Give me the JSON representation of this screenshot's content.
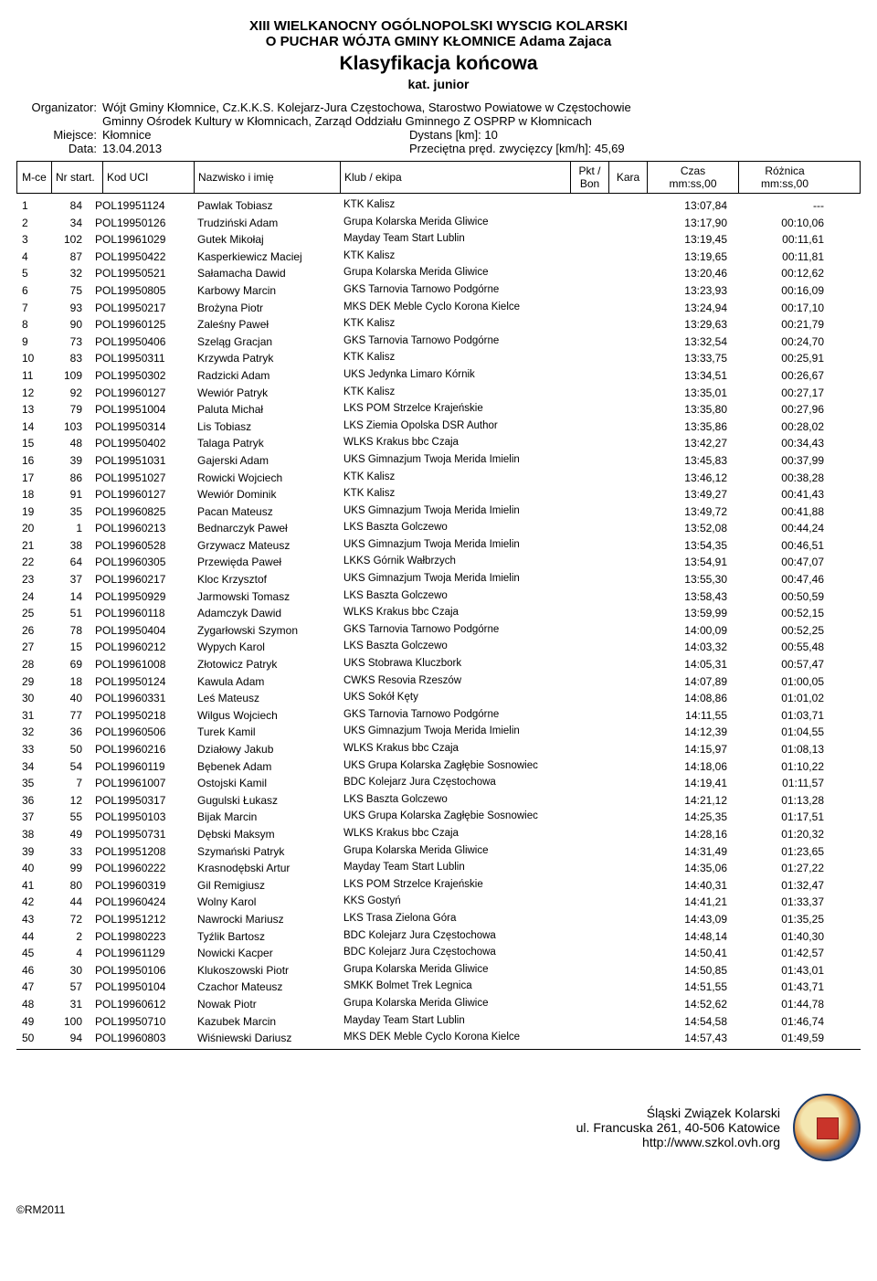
{
  "header": {
    "line1": "XIII WIELKANOCNY OGÓLNOPOLSKI WYSCIG KOLARSKI",
    "line2": "O PUCHAR WÓJTA GMINY KŁOMNICE Adama Zajaca",
    "line3": "Klasyfikacja końcowa",
    "line4": "kat. junior"
  },
  "meta": {
    "organizer_label": "Organizator:",
    "organizer_value1": "Wójt Gminy Kłomnice, Cz.K.K.S. Kolejarz-Jura Częstochowa, Starostwo Powiatowe w Częstochowie",
    "organizer_value2": "Gminny Ośrodek Kultury w Kłomnicach, Zarząd Oddziału Gminnego Z OSPRP w Kłomnicach",
    "place_label": "Miejsce:",
    "place_value": "Kłomnice",
    "distance_label": "Dystans [km]:",
    "distance_value": "10",
    "date_label": "Data:",
    "date_value": "13.04.2013",
    "avgspeed_label": "Przeciętna pręd. zwycięzcy [km/h]:",
    "avgspeed_value": "45,69"
  },
  "columns": {
    "mce": "M-ce",
    "nr": "Nr start.",
    "uci": "Kod UCI",
    "name": "Nazwisko i imię",
    "club": "Klub / ekipa",
    "pkt1": "Pkt /",
    "pkt2": "Bon",
    "kara": "Kara",
    "czas1": "Czas",
    "czas2": "mm:ss,00",
    "diff1": "Różnica",
    "diff2": "mm:ss,00"
  },
  "rows": [
    {
      "p": "1",
      "nr": "84",
      "uci": "POL19951124",
      "name": "Pawlak Tobiasz",
      "club": "KTK Kalisz",
      "cz": "13:07,84",
      "df": "---"
    },
    {
      "p": "2",
      "nr": "34",
      "uci": "POL19950126",
      "name": "Trudziński Adam",
      "club": "Grupa Kolarska Merida Gliwice",
      "cz": "13:17,90",
      "df": "00:10,06"
    },
    {
      "p": "3",
      "nr": "102",
      "uci": "POL19961029",
      "name": "Gutek Mikołaj",
      "club": "Mayday Team Start Lublin",
      "cz": "13:19,45",
      "df": "00:11,61"
    },
    {
      "p": "4",
      "nr": "87",
      "uci": "POL19950422",
      "name": "Kasperkiewicz Maciej",
      "club": "KTK Kalisz",
      "cz": "13:19,65",
      "df": "00:11,81"
    },
    {
      "p": "5",
      "nr": "32",
      "uci": "POL19950521",
      "name": "Sałamacha Dawid",
      "club": "Grupa Kolarska Merida Gliwice",
      "cz": "13:20,46",
      "df": "00:12,62"
    },
    {
      "p": "6",
      "nr": "75",
      "uci": "POL19950805",
      "name": "Karbowy Marcin",
      "club": "GKS Tarnovia Tarnowo Podgórne",
      "cz": "13:23,93",
      "df": "00:16,09"
    },
    {
      "p": "7",
      "nr": "93",
      "uci": "POL19950217",
      "name": "Brożyna Piotr",
      "club": "MKS DEK Meble Cyclo Korona Kielce",
      "cz": "13:24,94",
      "df": "00:17,10"
    },
    {
      "p": "8",
      "nr": "90",
      "uci": "POL19960125",
      "name": "Zaleśny Paweł",
      "club": "KTK Kalisz",
      "cz": "13:29,63",
      "df": "00:21,79"
    },
    {
      "p": "9",
      "nr": "73",
      "uci": "POL19950406",
      "name": "Szeląg Gracjan",
      "club": "GKS Tarnovia Tarnowo Podgórne",
      "cz": "13:32,54",
      "df": "00:24,70"
    },
    {
      "p": "10",
      "nr": "83",
      "uci": "POL19950311",
      "name": "Krzywda Patryk",
      "club": "KTK Kalisz",
      "cz": "13:33,75",
      "df": "00:25,91"
    },
    {
      "p": "11",
      "nr": "109",
      "uci": "POL19950302",
      "name": "Radzicki Adam",
      "club": "UKS Jedynka Limaro Kórnik",
      "cz": "13:34,51",
      "df": "00:26,67"
    },
    {
      "p": "12",
      "nr": "92",
      "uci": "POL19960127",
      "name": "Wewiór Patryk",
      "club": "KTK Kalisz",
      "cz": "13:35,01",
      "df": "00:27,17"
    },
    {
      "p": "13",
      "nr": "79",
      "uci": "POL19951004",
      "name": "Paluta Michał",
      "club": "LKS POM Strzelce Krajeńskie",
      "cz": "13:35,80",
      "df": "00:27,96"
    },
    {
      "p": "14",
      "nr": "103",
      "uci": "POL19950314",
      "name": "Lis Tobiasz",
      "club": "LKS Ziemia Opolska DSR Author",
      "cz": "13:35,86",
      "df": "00:28,02"
    },
    {
      "p": "15",
      "nr": "48",
      "uci": "POL19950402",
      "name": "Talaga Patryk",
      "club": "WLKS Krakus bbc Czaja",
      "cz": "13:42,27",
      "df": "00:34,43"
    },
    {
      "p": "16",
      "nr": "39",
      "uci": "POL19951031",
      "name": "Gajerski Adam",
      "club": "UKS Gimnazjum Twoja Merida Imielin",
      "cz": "13:45,83",
      "df": "00:37,99"
    },
    {
      "p": "17",
      "nr": "86",
      "uci": "POL19951027",
      "name": "Rowicki Wojciech",
      "club": "KTK Kalisz",
      "cz": "13:46,12",
      "df": "00:38,28"
    },
    {
      "p": "18",
      "nr": "91",
      "uci": "POL19960127",
      "name": "Wewiór Dominik",
      "club": "KTK Kalisz",
      "cz": "13:49,27",
      "df": "00:41,43"
    },
    {
      "p": "19",
      "nr": "35",
      "uci": "POL19960825",
      "name": "Pacan Mateusz",
      "club": "UKS Gimnazjum Twoja Merida Imielin",
      "cz": "13:49,72",
      "df": "00:41,88"
    },
    {
      "p": "20",
      "nr": "1",
      "uci": "POL19960213",
      "name": "Bednarczyk Paweł",
      "club": "LKS Baszta Golczewo",
      "cz": "13:52,08",
      "df": "00:44,24"
    },
    {
      "p": "21",
      "nr": "38",
      "uci": "POL19960528",
      "name": "Grzywacz Mateusz",
      "club": "UKS Gimnazjum Twoja Merida Imielin",
      "cz": "13:54,35",
      "df": "00:46,51"
    },
    {
      "p": "22",
      "nr": "64",
      "uci": "POL19960305",
      "name": "Przewięda Paweł",
      "club": "LKKS Górnik Wałbrzych",
      "cz": "13:54,91",
      "df": "00:47,07"
    },
    {
      "p": "23",
      "nr": "37",
      "uci": "POL19960217",
      "name": "Kloc Krzysztof",
      "club": "UKS Gimnazjum Twoja Merida Imielin",
      "cz": "13:55,30",
      "df": "00:47,46"
    },
    {
      "p": "24",
      "nr": "14",
      "uci": "POL19950929",
      "name": "Jarmowski Tomasz",
      "club": "LKS Baszta Golczewo",
      "cz": "13:58,43",
      "df": "00:50,59"
    },
    {
      "p": "25",
      "nr": "51",
      "uci": "POL19960118",
      "name": "Adamczyk Dawid",
      "club": "WLKS Krakus bbc Czaja",
      "cz": "13:59,99",
      "df": "00:52,15"
    },
    {
      "p": "26",
      "nr": "78",
      "uci": "POL19950404",
      "name": "Zygarłowski Szymon",
      "club": "GKS Tarnovia Tarnowo Podgórne",
      "cz": "14:00,09",
      "df": "00:52,25"
    },
    {
      "p": "27",
      "nr": "15",
      "uci": "POL19960212",
      "name": "Wypych Karol",
      "club": "LKS Baszta Golczewo",
      "cz": "14:03,32",
      "df": "00:55,48"
    },
    {
      "p": "28",
      "nr": "69",
      "uci": "POL19961008",
      "name": "Złotowicz Patryk",
      "club": "UKS Stobrawa Kluczbork",
      "cz": "14:05,31",
      "df": "00:57,47"
    },
    {
      "p": "29",
      "nr": "18",
      "uci": "POL19950124",
      "name": "Kawula Adam",
      "club": "CWKS Resovia Rzeszów",
      "cz": "14:07,89",
      "df": "01:00,05"
    },
    {
      "p": "30",
      "nr": "40",
      "uci": "POL19960331",
      "name": "Leś Mateusz",
      "club": "UKS Sokół Kęty",
      "cz": "14:08,86",
      "df": "01:01,02"
    },
    {
      "p": "31",
      "nr": "77",
      "uci": "POL19950218",
      "name": "Wilgus Wojciech",
      "club": "GKS Tarnovia Tarnowo Podgórne",
      "cz": "14:11,55",
      "df": "01:03,71"
    },
    {
      "p": "32",
      "nr": "36",
      "uci": "POL19960506",
      "name": "Turek Kamil",
      "club": "UKS Gimnazjum Twoja Merida Imielin",
      "cz": "14:12,39",
      "df": "01:04,55"
    },
    {
      "p": "33",
      "nr": "50",
      "uci": "POL19960216",
      "name": "Działowy Jakub",
      "club": "WLKS Krakus bbc Czaja",
      "cz": "14:15,97",
      "df": "01:08,13"
    },
    {
      "p": "34",
      "nr": "54",
      "uci": "POL19960119",
      "name": "Bębenek Adam",
      "club": "UKS Grupa Kolarska Zagłębie Sosnowiec",
      "cz": "14:18,06",
      "df": "01:10,22"
    },
    {
      "p": "35",
      "nr": "7",
      "uci": "POL19961007",
      "name": "Ostojski Kamil",
      "club": "BDC Kolejarz Jura Częstochowa",
      "cz": "14:19,41",
      "df": "01:11,57"
    },
    {
      "p": "36",
      "nr": "12",
      "uci": "POL19950317",
      "name": "Gugulski Łukasz",
      "club": "LKS Baszta Golczewo",
      "cz": "14:21,12",
      "df": "01:13,28"
    },
    {
      "p": "37",
      "nr": "55",
      "uci": "POL19950103",
      "name": "Bijak Marcin",
      "club": "UKS Grupa Kolarska Zagłębie Sosnowiec",
      "cz": "14:25,35",
      "df": "01:17,51"
    },
    {
      "p": "38",
      "nr": "49",
      "uci": "POL19950731",
      "name": "Dębski Maksym",
      "club": "WLKS Krakus bbc Czaja",
      "cz": "14:28,16",
      "df": "01:20,32"
    },
    {
      "p": "39",
      "nr": "33",
      "uci": "POL19951208",
      "name": "Szymański Patryk",
      "club": "Grupa Kolarska Merida Gliwice",
      "cz": "14:31,49",
      "df": "01:23,65"
    },
    {
      "p": "40",
      "nr": "99",
      "uci": "POL19960222",
      "name": "Krasnodębski Artur",
      "club": "Mayday Team Start Lublin",
      "cz": "14:35,06",
      "df": "01:27,22"
    },
    {
      "p": "41",
      "nr": "80",
      "uci": "POL19960319",
      "name": "Gil Remigiusz",
      "club": "LKS POM Strzelce Krajeńskie",
      "cz": "14:40,31",
      "df": "01:32,47"
    },
    {
      "p": "42",
      "nr": "44",
      "uci": "POL19960424",
      "name": "Wolny Karol",
      "club": "KKS Gostyń",
      "cz": "14:41,21",
      "df": "01:33,37"
    },
    {
      "p": "43",
      "nr": "72",
      "uci": "POL19951212",
      "name": "Nawrocki Mariusz",
      "club": "LKS Trasa Zielona Góra",
      "cz": "14:43,09",
      "df": "01:35,25"
    },
    {
      "p": "44",
      "nr": "2",
      "uci": "POL19980223",
      "name": "Tyźlik Bartosz",
      "club": "BDC Kolejarz Jura Częstochowa",
      "cz": "14:48,14",
      "df": "01:40,30"
    },
    {
      "p": "45",
      "nr": "4",
      "uci": "POL19961129",
      "name": "Nowicki Kacper",
      "club": "BDC Kolejarz Jura Częstochowa",
      "cz": "14:50,41",
      "df": "01:42,57"
    },
    {
      "p": "46",
      "nr": "30",
      "uci": "POL19950106",
      "name": "Klukoszowski Piotr",
      "club": "Grupa Kolarska Merida Gliwice",
      "cz": "14:50,85",
      "df": "01:43,01"
    },
    {
      "p": "47",
      "nr": "57",
      "uci": "POL19950104",
      "name": "Czachor Mateusz",
      "club": "SMKK Bolmet Trek Legnica",
      "cz": "14:51,55",
      "df": "01:43,71"
    },
    {
      "p": "48",
      "nr": "31",
      "uci": "POL19960612",
      "name": "Nowak Piotr",
      "club": "Grupa Kolarska Merida Gliwice",
      "cz": "14:52,62",
      "df": "01:44,78"
    },
    {
      "p": "49",
      "nr": "100",
      "uci": "POL19950710",
      "name": "Kazubek Marcin",
      "club": "Mayday Team Start Lublin",
      "cz": "14:54,58",
      "df": "01:46,74"
    },
    {
      "p": "50",
      "nr": "94",
      "uci": "POL19960803",
      "name": "Wiśniewski Dariusz",
      "club": "MKS DEK Meble Cyclo Korona Kielce",
      "cz": "14:57,43",
      "df": "01:49,59"
    }
  ],
  "footer": {
    "org": "Śląski Związek Kolarski",
    "addr": "ul. Francuska 261, 40-506 Katowice",
    "url": "http://www.szkol.ovh.org"
  },
  "copyright": "©RM2011"
}
